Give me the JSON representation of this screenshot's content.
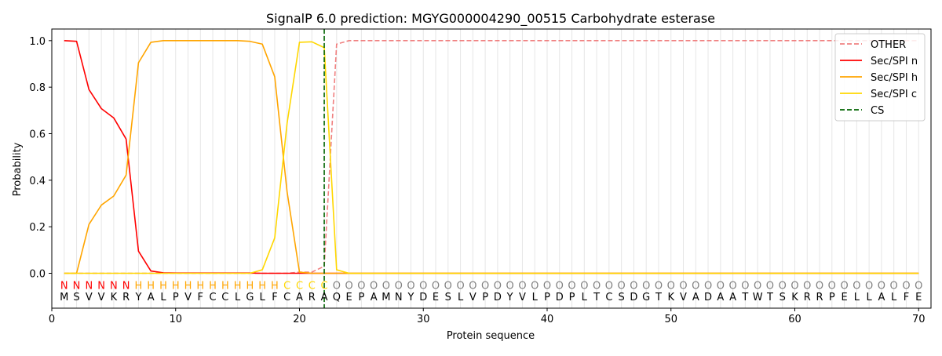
{
  "chart_data": {
    "type": "line",
    "title": "SignalP 6.0 prediction: MGYG000004290_00515 Carbohydrate esterase",
    "xlabel": "Protein sequence",
    "ylabel": "Probability",
    "xlim": [
      0,
      71
    ],
    "ylim": [
      -0.15,
      1.05
    ],
    "x_ticks": [
      0,
      10,
      20,
      30,
      40,
      50,
      60,
      70
    ],
    "y_ticks": [
      0.0,
      0.2,
      0.4,
      0.6,
      0.8,
      1.0
    ],
    "x_tick_labels": [
      "0",
      "10",
      "20",
      "30",
      "40",
      "50",
      "60",
      "70"
    ],
    "y_tick_labels": [
      "0.0",
      "0.2",
      "0.4",
      "0.6",
      "0.8",
      "1.0"
    ],
    "grid": "vertical lines at each residue",
    "legend_position": "top-right",
    "sequence": [
      "M",
      "S",
      "V",
      "V",
      "K",
      "R",
      "Y",
      "A",
      "L",
      "P",
      "V",
      "F",
      "C",
      "C",
      "L",
      "G",
      "L",
      "F",
      "C",
      "A",
      "R",
      "A",
      "Q",
      "E",
      "P",
      "A",
      "M",
      "N",
      "Y",
      "D",
      "E",
      "S",
      "L",
      "V",
      "P",
      "D",
      "Y",
      "V",
      "L",
      "P",
      "D",
      "P",
      "L",
      "T",
      "C",
      "S",
      "D",
      "G",
      "T",
      "K",
      "V",
      "A",
      "D",
      "A",
      "A",
      "T",
      "W",
      "T",
      "S",
      "K",
      "R",
      "R",
      "P",
      "E",
      "L",
      "L",
      "A",
      "L",
      "F",
      "E"
    ],
    "labels": [
      "N",
      "N",
      "N",
      "N",
      "N",
      "N",
      "H",
      "H",
      "H",
      "H",
      "H",
      "H",
      "H",
      "H",
      "H",
      "H",
      "H",
      "H",
      "C",
      "C",
      "C",
      "C",
      "O",
      "O",
      "O",
      "O",
      "O",
      "O",
      "O",
      "O",
      "O",
      "O",
      "O",
      "O",
      "O",
      "O",
      "O",
      "O",
      "O",
      "O",
      "O",
      "O",
      "O",
      "O",
      "O",
      "O",
      "O",
      "O",
      "O",
      "O",
      "O",
      "O",
      "O",
      "O",
      "O",
      "O",
      "O",
      "O",
      "O",
      "O",
      "O",
      "O",
      "O",
      "O",
      "O",
      "O",
      "O",
      "O",
      "O",
      "O"
    ],
    "label_colors": {
      "N": "#ff0000",
      "H": "#ffa500",
      "C": "#ffd700",
      "O": "#808080"
    },
    "series": [
      {
        "name": "OTHER",
        "color": "#f08080",
        "style": "dashed",
        "values": [
          0,
          0,
          0,
          0,
          0,
          0,
          0,
          0,
          0,
          0,
          0,
          0,
          0,
          0,
          0,
          0,
          0,
          0,
          0,
          0.005,
          0.005,
          0.03,
          0.985,
          1,
          1,
          1,
          1,
          1,
          1,
          1,
          1,
          1,
          1,
          1,
          1,
          1,
          1,
          1,
          1,
          1,
          1,
          1,
          1,
          1,
          1,
          1,
          1,
          1,
          1,
          1,
          1,
          1,
          1,
          1,
          1,
          1,
          1,
          1,
          1,
          1,
          1,
          1,
          1,
          1,
          1,
          1,
          1,
          1,
          1,
          1
        ]
      },
      {
        "name": "Sec/SPI n",
        "color": "#ff0000",
        "style": "solid",
        "values": [
          1.0,
          0.997,
          0.79,
          0.708,
          0.668,
          0.577,
          0.095,
          0.01,
          0.002,
          0.001,
          0.001,
          0.001,
          0.001,
          0.001,
          0.001,
          0.001,
          0,
          0,
          0,
          0,
          0,
          0,
          0,
          0,
          0,
          0,
          0,
          0,
          0,
          0,
          0,
          0,
          0,
          0,
          0,
          0,
          0,
          0,
          0,
          0,
          0,
          0,
          0,
          0,
          0,
          0,
          0,
          0,
          0,
          0,
          0,
          0,
          0,
          0,
          0,
          0,
          0,
          0,
          0,
          0,
          0,
          0,
          0,
          0,
          0,
          0,
          0,
          0,
          0,
          0
        ]
      },
      {
        "name": "Sec/SPI h",
        "color": "#ffa500",
        "style": "solid",
        "values": [
          0,
          0,
          0.21,
          0.293,
          0.332,
          0.422,
          0.905,
          0.993,
          1.0,
          1.0,
          1.0,
          1.0,
          1.0,
          1.0,
          1.0,
          0.997,
          0.985,
          0.845,
          0.35,
          0.005,
          0,
          0,
          0,
          0,
          0,
          0,
          0,
          0,
          0,
          0,
          0,
          0,
          0,
          0,
          0,
          0,
          0,
          0,
          0,
          0,
          0,
          0,
          0,
          0,
          0,
          0,
          0,
          0,
          0,
          0,
          0,
          0,
          0,
          0,
          0,
          0,
          0,
          0,
          0,
          0,
          0,
          0,
          0,
          0,
          0,
          0,
          0,
          0,
          0,
          0
        ]
      },
      {
        "name": "Sec/SPI c",
        "color": "#ffd700",
        "style": "solid",
        "values": [
          0,
          0,
          0,
          0,
          0,
          0,
          0,
          0,
          0,
          0,
          0,
          0,
          0,
          0,
          0,
          0,
          0.015,
          0.152,
          0.645,
          0.993,
          0.995,
          0.97,
          0.015,
          0,
          0,
          0,
          0,
          0,
          0,
          0,
          0,
          0,
          0,
          0,
          0,
          0,
          0,
          0,
          0,
          0,
          0,
          0,
          0,
          0,
          0,
          0,
          0,
          0,
          0,
          0,
          0,
          0,
          0,
          0,
          0,
          0,
          0,
          0,
          0,
          0,
          0,
          0,
          0,
          0,
          0,
          0,
          0,
          0,
          0,
          0
        ]
      },
      {
        "name": "CS",
        "color": "#006400",
        "style": "dashed",
        "vertical_x": 22
      }
    ]
  }
}
